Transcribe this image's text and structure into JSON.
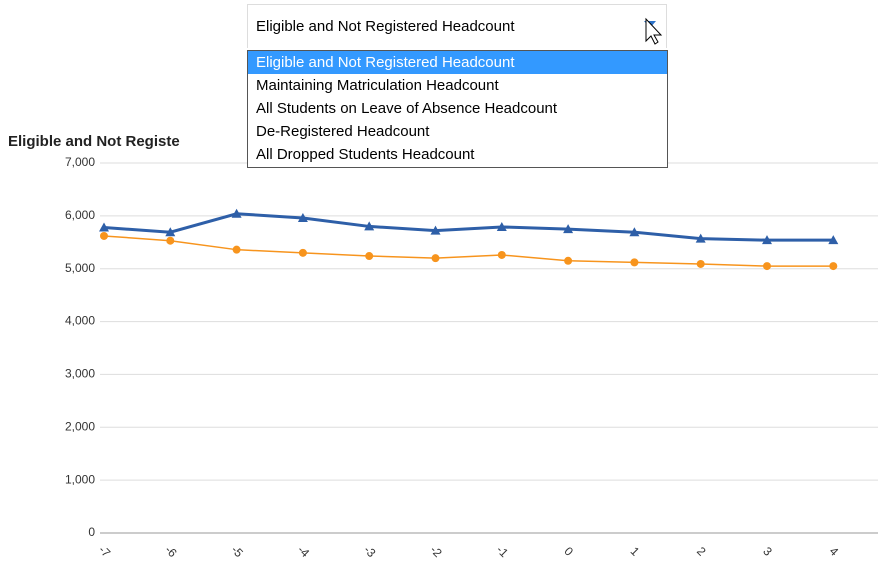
{
  "dropdown": {
    "selected": "Eligible and Not Registered Headcount",
    "options": [
      "Eligible and Not Registered Headcount",
      "Maintaining Matriculation Headcount",
      "All Students on Leave of Absence Headcount",
      "De-Registered Headcount",
      "All Dropped Students Headcount"
    ]
  },
  "chart_data": {
    "type": "line",
    "title": "Eligible and Not Registe",
    "categories": [
      "-7",
      "-6",
      "-5",
      "-4",
      "-3",
      "-2",
      "-1",
      "0",
      "1",
      "2",
      "3",
      "4"
    ],
    "series": [
      {
        "color": "#2e5fa8",
        "marker": "triangle",
        "values": [
          5780,
          5690,
          6040,
          5960,
          5800,
          5720,
          5790,
          5750,
          5690,
          5570,
          5540,
          5540
        ]
      },
      {
        "color": "#f7941d",
        "marker": "circle",
        "values": [
          5620,
          5530,
          5360,
          5300,
          5240,
          5200,
          5260,
          5150,
          5120,
          5090,
          5050,
          5050
        ]
      }
    ],
    "ylim": [
      0,
      7000
    ],
    "yticks": [
      0,
      {
        "value": 1000,
        "label": "1,000"
      },
      {
        "value": 2000,
        "label": "2,000"
      },
      {
        "value": 3000,
        "label": "3,000"
      },
      {
        "value": 4000,
        "label": "4,000"
      },
      {
        "value": 5000,
        "label": "5,000"
      },
      {
        "value": 6000,
        "label": "6,000"
      },
      {
        "value": 7000,
        "label": "7,000"
      }
    ],
    "grid": true
  }
}
